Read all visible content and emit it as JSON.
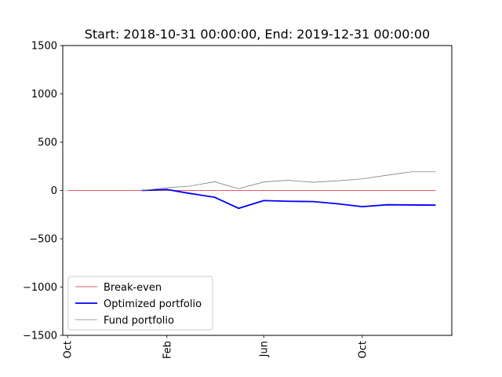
{
  "chart_data": {
    "type": "line",
    "title": "Start: 2018-10-31 00:00:00, End: 2019-12-31 00:00:00",
    "xlabel": "",
    "ylabel": "",
    "xlim": [
      "2018-09-25",
      "2020-01-20"
    ],
    "ylim": [
      -1500,
      1500
    ],
    "yticks": [
      -1500,
      -1000,
      -500,
      0,
      500,
      1000,
      1500
    ],
    "ytick_labels": [
      "−1500",
      "−1000",
      "−500",
      "0",
      "500",
      "1000",
      "1500"
    ],
    "xticks": [
      {
        "date": "2018-10-01",
        "label": "Oct"
      },
      {
        "date": "2019-02-01",
        "label": "Feb"
      },
      {
        "date": "2019-06-01",
        "label": "Jun"
      },
      {
        "date": "2019-10-01",
        "label": "Oct"
      }
    ],
    "grid": false,
    "legend_position": "lower-left",
    "series": [
      {
        "name": "Break-even",
        "color": "#d62728",
        "x": [
          "2018-10-01",
          "2019-12-31"
        ],
        "y": [
          0,
          0
        ]
      },
      {
        "name": "Optimized portfolio",
        "color": "#0000ff",
        "x": [
          "2019-01-01",
          "2019-02-01",
          "2019-03-01",
          "2019-04-01",
          "2019-05-01",
          "2019-06-01",
          "2019-07-01",
          "2019-08-01",
          "2019-09-01",
          "2019-10-01",
          "2019-11-01",
          "2019-12-01",
          "2019-12-31"
        ],
        "y": [
          0,
          10,
          -30,
          -70,
          -185,
          -105,
          -112,
          -115,
          -138,
          -168,
          -148,
          -150,
          -152
        ]
      },
      {
        "name": "Fund portfolio",
        "color": "#808080",
        "x": [
          "2019-01-01",
          "2019-02-01",
          "2019-03-01",
          "2019-04-01",
          "2019-05-01",
          "2019-06-01",
          "2019-07-01",
          "2019-08-01",
          "2019-09-01",
          "2019-10-01",
          "2019-11-01",
          "2019-12-01",
          "2019-12-31"
        ],
        "y": [
          0,
          28,
          45,
          90,
          18,
          88,
          105,
          85,
          100,
          120,
          158,
          193,
          193
        ]
      }
    ]
  }
}
